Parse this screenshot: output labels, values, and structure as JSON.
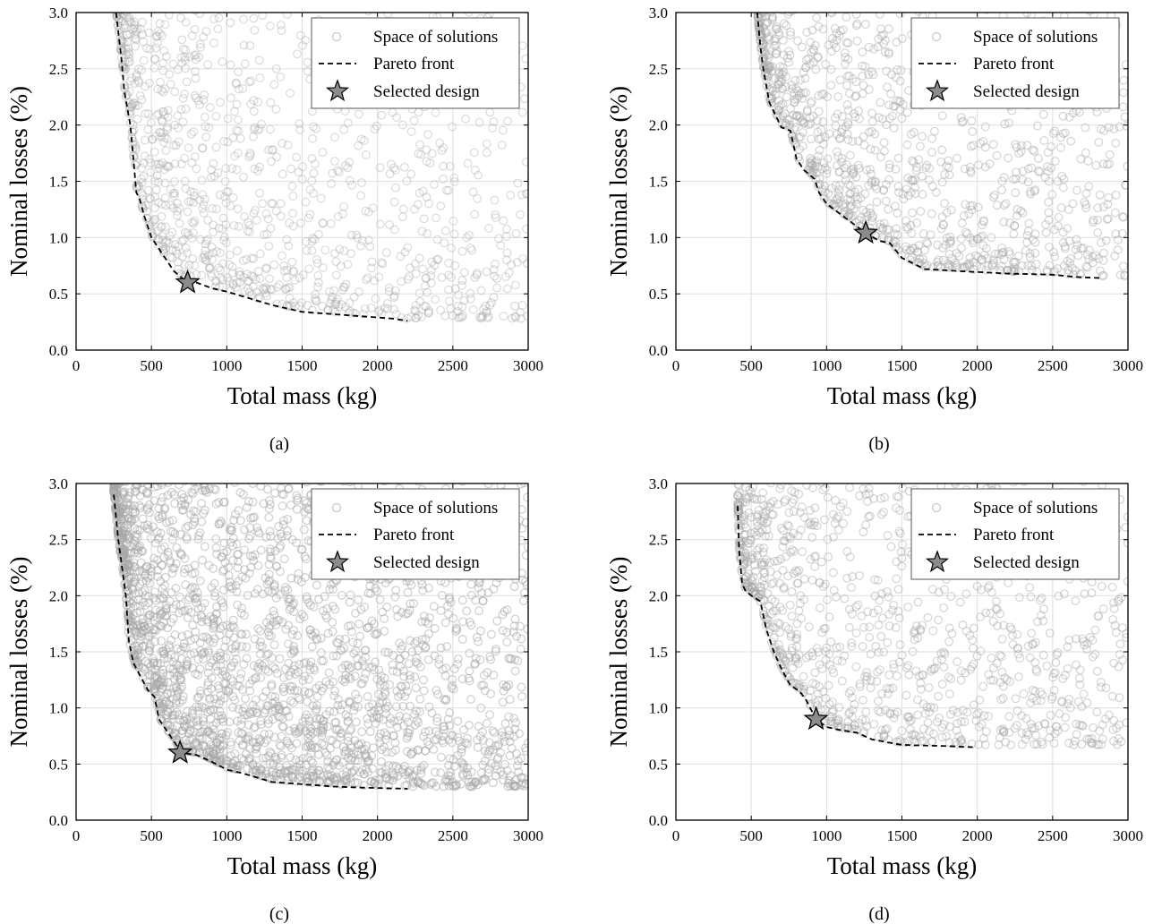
{
  "colors": {
    "scatter": "#a6a6a6",
    "pareto": "#000000",
    "star_fill": "#8c8c8c",
    "grid": "#e3e3e3"
  },
  "chart_data": [
    {
      "id": "a",
      "caption": "(a)",
      "type": "scatter",
      "xlabel": "Total mass (kg)",
      "ylabel": "Nominal losses (%)",
      "xlim": [
        0,
        3000
      ],
      "ylim": [
        0,
        3.0
      ],
      "xticks": [
        0,
        500,
        1000,
        1500,
        2000,
        2500,
        3000
      ],
      "yticks": [
        0.0,
        0.5,
        1.0,
        1.5,
        2.0,
        2.5,
        3.0
      ],
      "xtick_labels": [
        "0",
        "500",
        "1000",
        "1500",
        "2000",
        "2500",
        "3000"
      ],
      "ytick_labels": [
        "0.0",
        "0.5",
        "1.0",
        "1.5",
        "2.0",
        "2.5",
        "3.0"
      ],
      "grid": true,
      "legend_position": "top-right",
      "legend": [
        "Space of solutions",
        "Pareto front",
        "Selected design"
      ],
      "cloud": {
        "points": 1400,
        "x_min": 270,
        "x_max": 3000,
        "seed": 11,
        "opacity": 0.38
      },
      "pareto_front": {
        "x": [
          265,
          300,
          320,
          340,
          360,
          380,
          400,
          420,
          450,
          500,
          550,
          600,
          650,
          740,
          800,
          900,
          1000,
          1100,
          1200,
          1300,
          1400,
          1500,
          1700,
          1900,
          2100,
          2200
        ],
        "y": [
          3.0,
          2.6,
          2.3,
          2.15,
          2.0,
          1.7,
          1.4,
          1.35,
          1.2,
          1.0,
          0.9,
          0.8,
          0.7,
          0.6,
          0.6,
          0.55,
          0.52,
          0.48,
          0.44,
          0.4,
          0.37,
          0.34,
          0.32,
          0.3,
          0.28,
          0.26
        ]
      },
      "selected_design": {
        "x": 740,
        "y": 0.6
      }
    },
    {
      "id": "b",
      "caption": "(b)",
      "type": "scatter",
      "xlabel": "Total mass (kg)",
      "ylabel": "Nominal losses (%)",
      "xlim": [
        0,
        3000
      ],
      "ylim": [
        0,
        3.0
      ],
      "xticks": [
        0,
        500,
        1000,
        1500,
        2000,
        2500,
        3000
      ],
      "yticks": [
        0.0,
        0.5,
        1.0,
        1.5,
        2.0,
        2.5,
        3.0
      ],
      "xtick_labels": [
        "0",
        "500",
        "1000",
        "1500",
        "2000",
        "2500",
        "3000"
      ],
      "ytick_labels": [
        "0.0",
        "0.5",
        "1.0",
        "1.5",
        "2.0",
        "2.5",
        "3.0"
      ],
      "grid": true,
      "legend_position": "top-right",
      "legend": [
        "Space of solutions",
        "Pareto front",
        "Selected design"
      ],
      "cloud": {
        "points": 1700,
        "x_min": 540,
        "x_max": 3000,
        "seed": 23,
        "opacity": 0.45
      },
      "pareto_front": {
        "x": [
          540,
          560,
          580,
          620,
          700,
          760,
          800,
          850,
          920,
          950,
          1000,
          1080,
          1150,
          1260,
          1350,
          1420,
          1500,
          1650,
          1900,
          2200,
          2500,
          2650,
          2820
        ],
        "y": [
          3.0,
          2.7,
          2.5,
          2.2,
          1.98,
          1.95,
          1.7,
          1.6,
          1.52,
          1.4,
          1.3,
          1.22,
          1.15,
          1.04,
          0.97,
          0.95,
          0.82,
          0.72,
          0.7,
          0.68,
          0.67,
          0.65,
          0.64
        ]
      },
      "selected_design": {
        "x": 1260,
        "y": 1.04
      }
    },
    {
      "id": "c",
      "caption": "(c)",
      "type": "scatter",
      "xlabel": "Total mass (kg)",
      "ylabel": "Nominal losses (%)",
      "xlim": [
        0,
        3000
      ],
      "ylim": [
        0,
        3.0
      ],
      "xticks": [
        0,
        500,
        1000,
        1500,
        2000,
        2500,
        3000
      ],
      "yticks": [
        0.0,
        0.5,
        1.0,
        1.5,
        2.0,
        2.5,
        3.0
      ],
      "xtick_labels": [
        "0",
        "500",
        "1000",
        "1500",
        "2000",
        "2500",
        "3000"
      ],
      "ytick_labels": [
        "0.0",
        "0.5",
        "1.0",
        "1.5",
        "2.0",
        "2.5",
        "3.0"
      ],
      "grid": true,
      "legend_position": "top-right",
      "legend": [
        "Space of solutions",
        "Pareto front",
        "Selected design"
      ],
      "cloud": {
        "points": 3200,
        "x_min": 250,
        "x_max": 3000,
        "seed": 37,
        "opacity": 0.5
      },
      "pareto_front": {
        "x": [
          250,
          280,
          300,
          330,
          350,
          380,
          420,
          480,
          520,
          550,
          600,
          650,
          700,
          800,
          900,
          1000,
          1100,
          1200,
          1300,
          1500,
          1700,
          1900,
          2200
        ],
        "y": [
          2.9,
          2.5,
          2.3,
          2.0,
          1.6,
          1.4,
          1.3,
          1.15,
          1.1,
          0.9,
          0.8,
          0.7,
          0.6,
          0.58,
          0.52,
          0.45,
          0.42,
          0.38,
          0.34,
          0.32,
          0.3,
          0.29,
          0.28
        ]
      },
      "selected_design": {
        "x": 690,
        "y": 0.6
      }
    },
    {
      "id": "d",
      "caption": "(d)",
      "type": "scatter",
      "xlabel": "Total mass (kg)",
      "ylabel": "Nominal losses (%)",
      "xlim": [
        0,
        3000
      ],
      "ylim": [
        0,
        3.0
      ],
      "xticks": [
        0,
        500,
        1000,
        1500,
        2000,
        2500,
        3000
      ],
      "yticks": [
        0.0,
        0.5,
        1.0,
        1.5,
        2.0,
        2.5,
        3.0
      ],
      "xtick_labels": [
        "0",
        "500",
        "1000",
        "1500",
        "2000",
        "2500",
        "3000"
      ],
      "ytick_labels": [
        "0.0",
        "0.5",
        "1.0",
        "1.5",
        "2.0",
        "2.5",
        "3.0"
      ],
      "grid": true,
      "legend_position": "top-right",
      "legend": [
        "Space of solutions",
        "Pareto front",
        "Selected design"
      ],
      "cloud": {
        "points": 1500,
        "x_min": 410,
        "x_max": 3000,
        "seed": 53,
        "opacity": 0.45
      },
      "pareto_front": {
        "x": [
          410,
          420,
          440,
          460,
          500,
          560,
          600,
          650,
          700,
          760,
          820,
          860,
          930,
          1000,
          1100,
          1200,
          1300,
          1500,
          1800,
          1970
        ],
        "y": [
          2.8,
          2.4,
          2.1,
          2.05,
          2.0,
          1.95,
          1.7,
          1.5,
          1.35,
          1.2,
          1.15,
          1.08,
          0.9,
          0.83,
          0.8,
          0.78,
          0.72,
          0.67,
          0.66,
          0.65
        ]
      },
      "selected_design": {
        "x": 930,
        "y": 0.9
      }
    }
  ]
}
